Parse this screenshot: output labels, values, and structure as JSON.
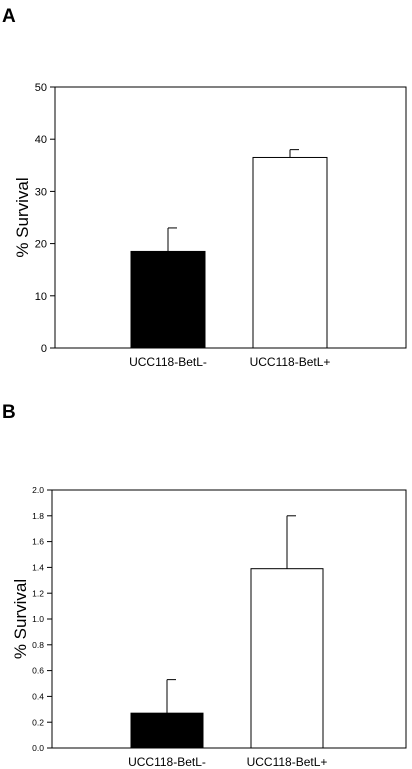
{
  "panels": [
    "A",
    "B"
  ],
  "chart_data": [
    {
      "type": "bar",
      "title": "",
      "panel": "A",
      "xlabel": "",
      "ylabel": "% Survival",
      "categories": [
        "UCC118-BetL-",
        "UCC118-BetL+"
      ],
      "values": [
        18.5,
        36.5
      ],
      "error": [
        4.5,
        1.5
      ],
      "bar_colors": [
        "#000000",
        "#ffffff"
      ],
      "ylim": [
        0,
        50
      ],
      "yticks": [
        "0",
        "10",
        "20",
        "30",
        "40",
        "50"
      ],
      "grid": false
    },
    {
      "type": "bar",
      "title": "",
      "panel": "B",
      "xlabel": "",
      "ylabel": "% Survival",
      "categories": [
        "UCC118-BetL-",
        "UCC118-BetL+"
      ],
      "values": [
        0.27,
        1.39
      ],
      "error": [
        0.26,
        0.41
      ],
      "bar_colors": [
        "#000000",
        "#ffffff"
      ],
      "ylim": [
        0,
        2.0
      ],
      "yticks": [
        "0.0",
        "0.2",
        "0.4",
        "0.6",
        "0.8",
        "1.0",
        "1.2",
        "1.4",
        "1.6",
        "1.8",
        "2.0"
      ],
      "grid": false
    }
  ]
}
